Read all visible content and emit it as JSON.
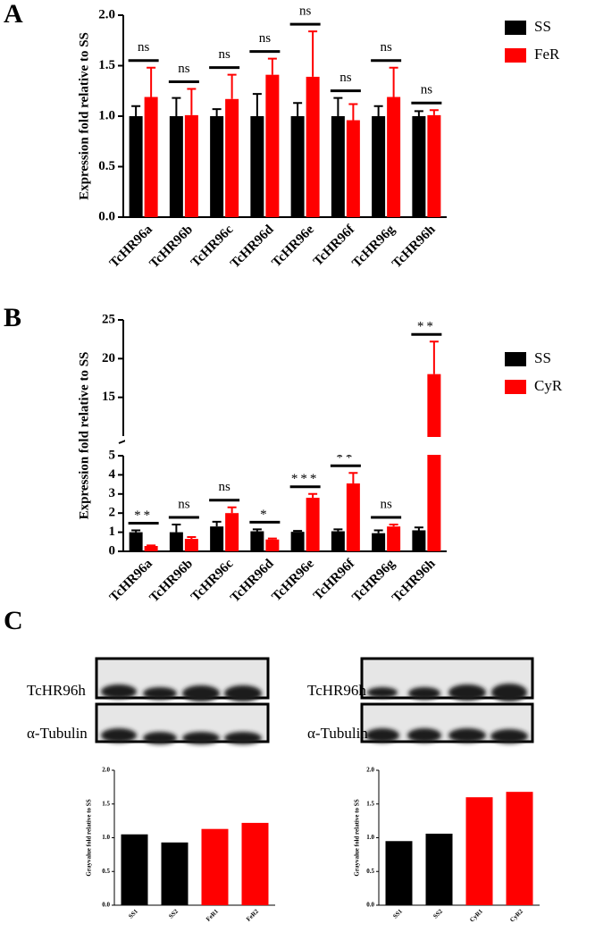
{
  "panel_labels": [
    "A",
    "B",
    "C"
  ],
  "blots": [
    {
      "labels": [
        "TcHR96h",
        "α-Tubulin"
      ]
    },
    {
      "labels": [
        "TcHR96h",
        "α-Tubulin"
      ]
    }
  ],
  "chart_data": [
    {
      "type": "bar",
      "y_label": "Expression fold relative to SS",
      "categories": [
        "TcHR96a",
        "TcHR96b",
        "TcHR96c",
        "TcHR96d",
        "TcHR96e",
        "TcHR96f",
        "TcHR96g",
        "TcHR96h"
      ],
      "series": [
        {
          "name": "SS",
          "color": "#000000",
          "values": [
            1.0,
            1.0,
            1.0,
            1.0,
            1.0,
            1.0,
            1.0,
            1.0
          ],
          "errors": [
            0.1,
            0.18,
            0.07,
            0.22,
            0.13,
            0.18,
            0.1,
            0.05
          ]
        },
        {
          "name": "FeR",
          "color": "#ff0000",
          "values": [
            1.19,
            1.01,
            1.17,
            1.41,
            1.39,
            0.96,
            1.19,
            1.01
          ],
          "errors": [
            0.29,
            0.26,
            0.24,
            0.16,
            0.45,
            0.16,
            0.29,
            0.05
          ]
        }
      ],
      "annotations": [
        "ns",
        "ns",
        "ns",
        "ns",
        "ns",
        "ns",
        "ns",
        "ns"
      ],
      "ylim": [
        0,
        2
      ],
      "yticks": [
        {
          "value": 0,
          "label": "0.0"
        },
        {
          "value": 0.5,
          "label": "0.5"
        },
        {
          "value": 1,
          "label": "1.0"
        },
        {
          "value": 1.5,
          "label": "1.5"
        },
        {
          "value": 2,
          "label": "2.0"
        }
      ]
    },
    {
      "type": "bar",
      "y_label": "Expression fold relative to SS",
      "categories": [
        "TcHR96a",
        "TcHR96b",
        "TcHR96c",
        "TcHR96d",
        "TcHR96e",
        "TcHR96f",
        "TcHR96g",
        "TcHR96h"
      ],
      "series": [
        {
          "name": "SS",
          "color": "#000000",
          "values": [
            1.0,
            1.0,
            1.3,
            1.05,
            1.02,
            1.05,
            0.95,
            1.1
          ],
          "errors": [
            0.1,
            0.4,
            0.25,
            0.1,
            0.05,
            0.1,
            0.15,
            0.15
          ]
        },
        {
          "name": "CyR",
          "color": "#ff0000",
          "values": [
            0.28,
            0.65,
            2.0,
            0.62,
            2.8,
            3.55,
            1.3,
            18.0
          ],
          "errors": [
            0.03,
            0.1,
            0.3,
            0.05,
            0.2,
            0.55,
            0.1,
            4.2
          ]
        }
      ],
      "annotations": [
        "**",
        "ns",
        "ns",
        "*",
        "***",
        "**",
        "ns",
        "**"
      ],
      "ylim": [
        0,
        25
      ],
      "axis_break": [
        5,
        10
      ],
      "yticks": [
        0,
        1,
        2,
        3,
        4,
        5,
        15,
        20,
        25
      ]
    },
    {
      "type": "bar",
      "y_label": "Grayvalue fold relative to SS",
      "categories": [
        "SS1",
        "SS2",
        "FeR1",
        "FeR2"
      ],
      "values": [
        1.05,
        0.93,
        1.13,
        1.22
      ],
      "colors": [
        "#000000",
        "#000000",
        "#ff0000",
        "#ff0000"
      ],
      "ylim": [
        0,
        2
      ],
      "yticks": [
        {
          "value": 0,
          "label": "0.0"
        },
        {
          "value": 0.5,
          "label": "0.5"
        },
        {
          "value": 1,
          "label": "1.0"
        },
        {
          "value": 1.5,
          "label": "1.5"
        },
        {
          "value": 2,
          "label": "2.0"
        }
      ]
    },
    {
      "type": "bar",
      "y_label": "Grayvalue fold relative to SS",
      "categories": [
        "SS1",
        "SS2",
        "CyR1",
        "CyR2"
      ],
      "values": [
        0.95,
        1.06,
        1.6,
        1.68
      ],
      "colors": [
        "#000000",
        "#000000",
        "#ff0000",
        "#ff0000"
      ],
      "ylim": [
        0,
        2
      ],
      "yticks": [
        {
          "value": 0,
          "label": "0.0"
        },
        {
          "value": 0.5,
          "label": "0.5"
        },
        {
          "value": 1,
          "label": "1.0"
        },
        {
          "value": 1.5,
          "label": "1.5"
        },
        {
          "value": 2,
          "label": "2.0"
        }
      ]
    }
  ]
}
